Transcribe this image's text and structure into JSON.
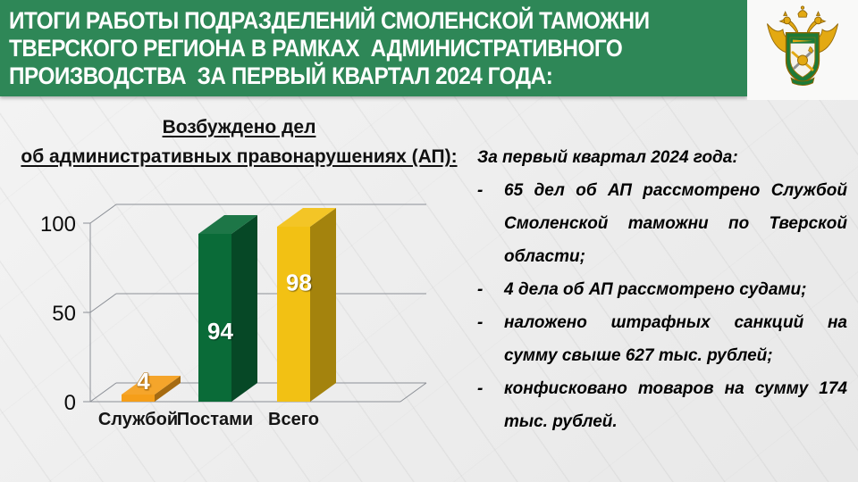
{
  "header": {
    "bg_color": "#2e8757",
    "title_lines": [
      "ИТОГИ РАБОТЫ ПОДРАЗДЕЛЕНИЙ СМОЛЕНСКОЙ ТАМОЖНИ",
      "ТВЕРСКОГО РЕГИОНА В РАМКАХ  АДМИНИСТРАТИВНОГО",
      "ПРОИЗВОДСТВА  ЗА ПЕРВЫЙ КВАРТАЛ 2024 ГОДА:"
    ]
  },
  "chart_data": {
    "type": "bar",
    "style": "3d",
    "title": "Возбуждено дел об административных правонарушениях (АП):",
    "title_lines": [
      "Возбуждено дел",
      "об административных правонарушениях (АП):"
    ],
    "categories": [
      "Службой",
      "Постами",
      "Всего"
    ],
    "values": [
      4,
      94,
      98
    ],
    "bar_colors": [
      "#f59e19",
      "#0a6b38",
      "#f2c114"
    ],
    "yticks": [
      0,
      50,
      100
    ],
    "ylim": [
      0,
      100
    ],
    "xlabel": "",
    "ylabel": "",
    "grid": true,
    "legend": false
  },
  "notes": {
    "heading": "За первый квартал 2024 года:",
    "marker": "-",
    "items": [
      "65 дел об АП рассмотрено Службой Смоленской таможни по Тверской области;",
      "4 дела об АП рассмотрено судами;",
      "наложено штрафных санкций на сумму свыше 627 тыс. рублей;",
      "конфисковано товаров на сумму 174 тыс. рублей."
    ]
  }
}
